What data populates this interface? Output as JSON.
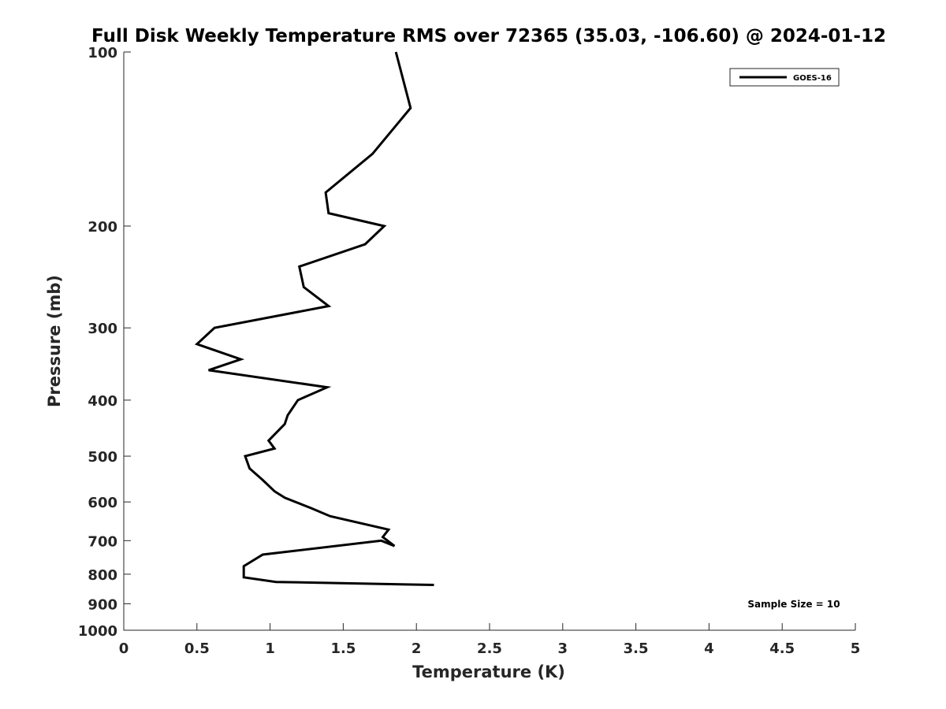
{
  "chart_data": {
    "type": "line",
    "title": "Full Disk Weekly Temperature RMS over 72365 (35.03, -106.60) @ 2024-01-12",
    "xlabel": "Temperature (K)",
    "ylabel": "Pressure (mb)",
    "xlim": [
      0,
      5
    ],
    "ylim": [
      100,
      1000
    ],
    "y_scale": "log",
    "y_reversed": true,
    "x_ticks": [
      0,
      0.5,
      1,
      1.5,
      2,
      2.5,
      3,
      3.5,
      4,
      4.5,
      5
    ],
    "x_tick_labels": [
      "0",
      "0.5",
      "1",
      "1.5",
      "2",
      "2.5",
      "3",
      "3.5",
      "4",
      "4.5",
      "5"
    ],
    "y_ticks": [
      100,
      200,
      300,
      400,
      500,
      600,
      700,
      800,
      900,
      1000
    ],
    "y_tick_labels": [
      "100",
      "200",
      "300",
      "400",
      "500",
      "600",
      "700",
      "800",
      "900",
      "1000"
    ],
    "grid": false,
    "legend_position": "top-right",
    "series": [
      {
        "name": "GOES-16",
        "color": "#000000",
        "x": [
          1.86,
          1.96,
          1.7,
          1.38,
          1.4,
          1.78,
          1.65,
          1.2,
          1.23,
          1.4,
          0.62,
          0.5,
          0.8,
          0.58,
          1.39,
          1.19,
          1.12,
          1.1,
          0.99,
          1.03,
          0.83,
          0.86,
          0.95,
          1.03,
          1.1,
          1.28,
          1.41,
          1.81,
          1.77,
          1.85,
          1.76,
          0.95,
          0.82,
          0.82,
          1.04,
          2.12
        ],
        "y": [
          100,
          125,
          150,
          175,
          190,
          200,
          215,
          235,
          255,
          275,
          300,
          320,
          340,
          355,
          380,
          400,
          425,
          440,
          470,
          485,
          500,
          525,
          550,
          575,
          590,
          615,
          635,
          670,
          690,
          715,
          700,
          740,
          775,
          810,
          825,
          835
        ]
      }
    ],
    "annotation": "Sample Size = 10"
  }
}
